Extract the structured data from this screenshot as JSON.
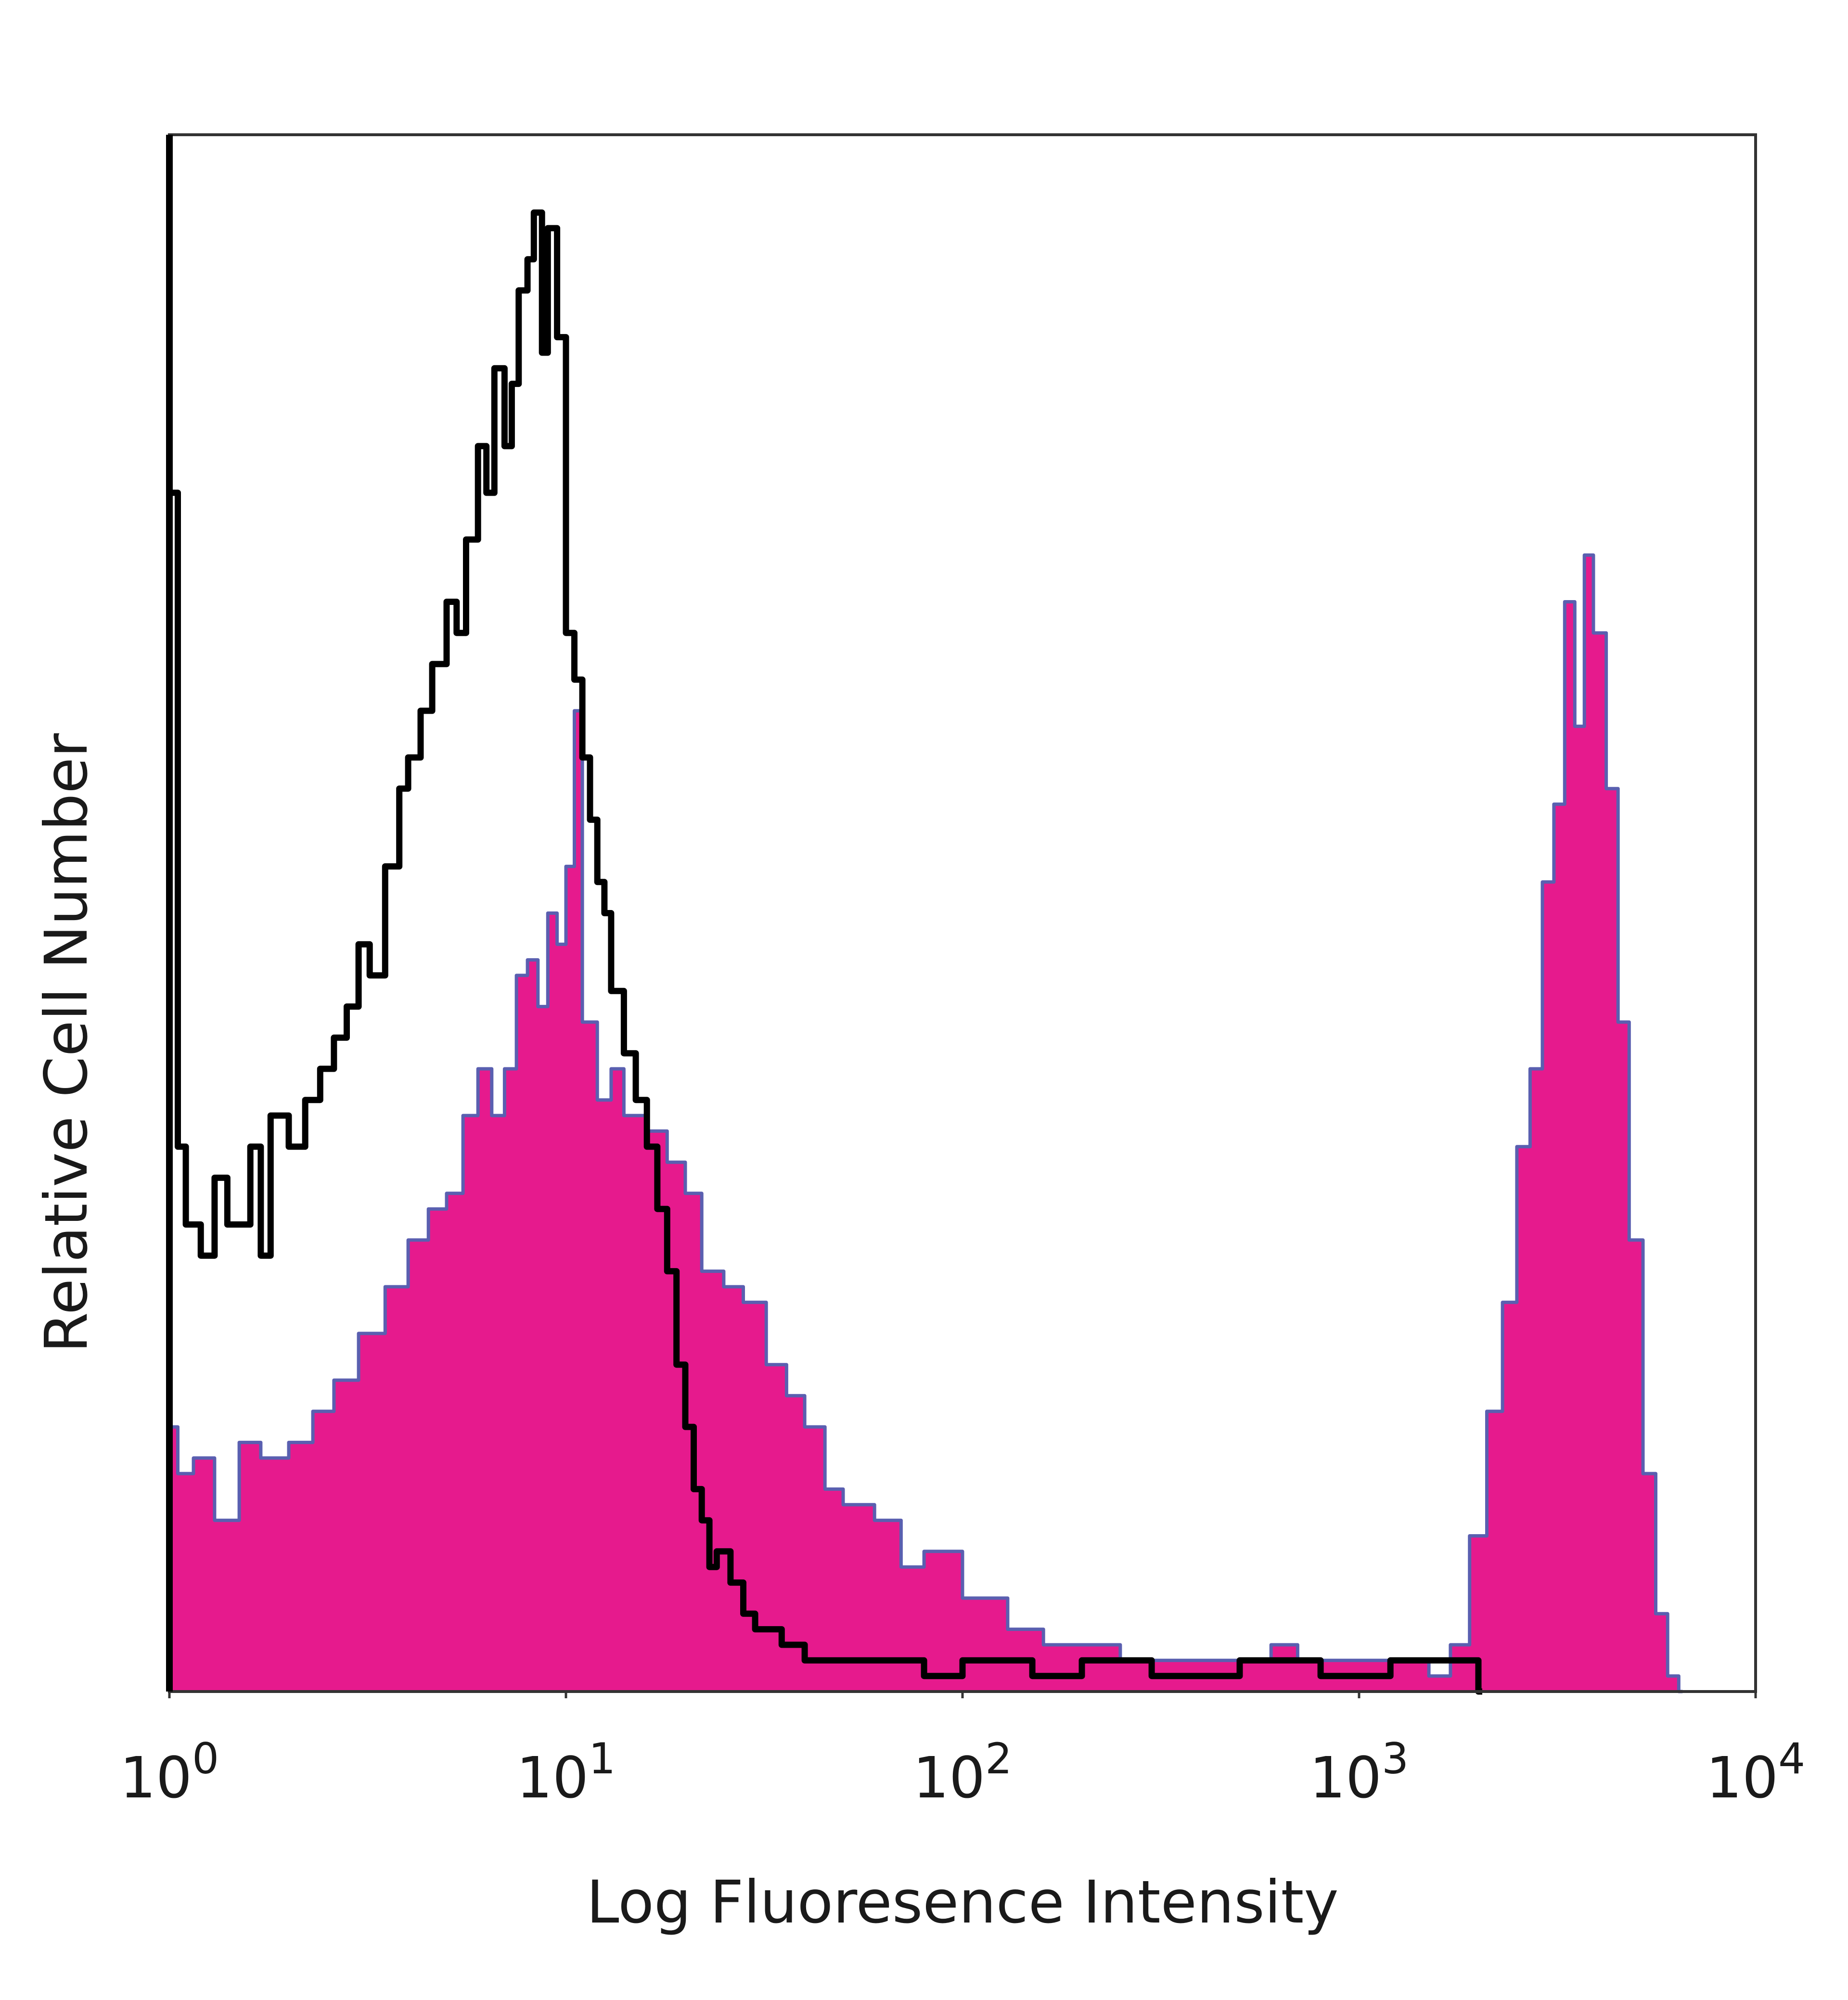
{
  "chart_data": {
    "type": "area",
    "xscale": "log",
    "xlim": [
      1,
      10000
    ],
    "ylim": [
      0,
      100
    ],
    "xlabel": "Log Fluoresence Intensity",
    "ylabel": "Relative Cell Number",
    "xticks": [
      {
        "base": "10",
        "exp": "0",
        "value": 1
      },
      {
        "base": "10",
        "exp": "1",
        "value": 10
      },
      {
        "base": "10",
        "exp": "2",
        "value": 100
      },
      {
        "base": "10",
        "exp": "3",
        "value": 1000
      },
      {
        "base": "10",
        "exp": "4",
        "value": 10000
      }
    ],
    "grid": false,
    "colors": {
      "filled_series": "#e61a8d",
      "filled_outline": "#5a5fb0",
      "control_series": "#000000",
      "frame": "#333333"
    },
    "series": [
      {
        "style": "filled",
        "x": [
          1,
          1.05,
          1.15,
          1.3,
          1.5,
          1.7,
          2.0,
          2.3,
          2.6,
          3.0,
          3.5,
          4.0,
          4.5,
          5.0,
          5.5,
          6.0,
          6.5,
          7.0,
          7.5,
          8.0,
          8.5,
          9.0,
          9.5,
          10,
          10.5,
          11,
          12,
          13,
          14,
          16,
          18,
          20,
          22,
          25,
          28,
          32,
          36,
          40,
          45,
          50,
          60,
          70,
          80,
          100,
          130,
          160,
          200,
          250,
          320,
          400,
          500,
          600,
          700,
          900,
          1100,
          1300,
          1500,
          1700,
          1900,
          2100,
          2300,
          2500,
          2700,
          2900,
          3100,
          3300,
          3500,
          3700,
          3900,
          4200,
          4500,
          4800,
          5200,
          5600,
          6000,
          6400
        ],
        "values": [
          17,
          14,
          15,
          11,
          16,
          15,
          16,
          18,
          20,
          23,
          26,
          29,
          31,
          32,
          37,
          40,
          37,
          40,
          46,
          47,
          44,
          50,
          48,
          53,
          63,
          43,
          38,
          40,
          37,
          36,
          34,
          32,
          27,
          26,
          25,
          21,
          19,
          17,
          13,
          12,
          11,
          8,
          9,
          6,
          4,
          3,
          3,
          2,
          2,
          2,
          2,
          3,
          2,
          2,
          2,
          2,
          1,
          3,
          10,
          18,
          25,
          35,
          40,
          52,
          57,
          70,
          62,
          73,
          68,
          58,
          43,
          29,
          14,
          5,
          1,
          0
        ]
      },
      {
        "style": "outline",
        "x": [
          1,
          1.05,
          1.1,
          1.2,
          1.3,
          1.4,
          1.5,
          1.6,
          1.7,
          1.8,
          2.0,
          2.2,
          2.4,
          2.6,
          2.8,
          3.0,
          3.2,
          3.5,
          3.8,
          4.0,
          4.3,
          4.6,
          5.0,
          5.3,
          5.6,
          6.0,
          6.3,
          6.6,
          7.0,
          7.3,
          7.6,
          8.0,
          8.3,
          8.7,
          9.0,
          9.5,
          10,
          10.5,
          11,
          11.5,
          12,
          12.5,
          13,
          14,
          15,
          16,
          17,
          18,
          19,
          20,
          21,
          22,
          23,
          24,
          26,
          28,
          30,
          35,
          40,
          50,
          60,
          70,
          80,
          100,
          150,
          200,
          300,
          500,
          800,
          1200,
          2000
        ],
        "values": [
          77,
          35,
          30,
          28,
          33,
          30,
          30,
          35,
          28,
          37,
          35,
          38,
          40,
          42,
          44,
          48,
          46,
          53,
          58,
          60,
          63,
          66,
          70,
          68,
          74,
          80,
          77,
          85,
          80,
          84,
          90,
          92,
          95,
          86,
          94,
          87,
          68,
          65,
          60,
          56,
          52,
          50,
          45,
          41,
          38,
          35,
          31,
          27,
          21,
          17,
          13,
          11,
          8,
          9,
          7,
          5,
          4,
          3,
          2,
          2,
          2,
          2,
          1,
          2,
          1,
          2,
          1,
          2,
          1,
          2,
          0
        ]
      }
    ]
  }
}
